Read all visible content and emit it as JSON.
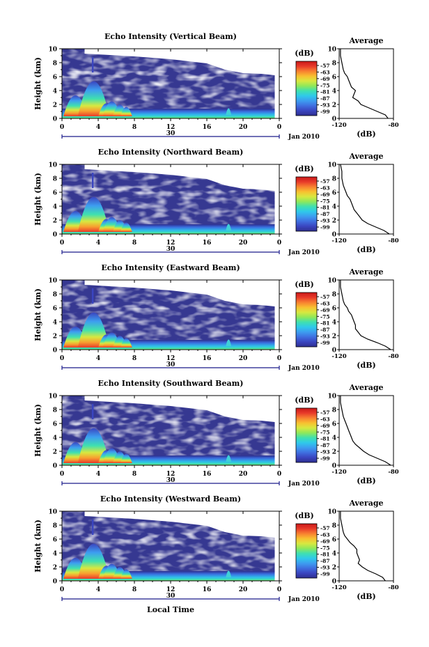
{
  "chart_data": {
    "type": "heatmap",
    "xaxis": {
      "label": "Local Time",
      "range": [
        0,
        24
      ],
      "ticks": [
        "0",
        "4",
        "8",
        "12",
        "16",
        "20",
        "0"
      ],
      "date_label": "30",
      "month_label": "Jan 2010"
    },
    "yaxis": {
      "label": "Height (km)",
      "range": [
        0,
        10
      ],
      "ticks": [
        "0",
        "2",
        "4",
        "6",
        "8",
        "10"
      ]
    },
    "colorbar": {
      "unit": "(dB)",
      "ticks": [
        "-57",
        "-63",
        "-69",
        "-75",
        "-81",
        "-87",
        "-93",
        "-99"
      ],
      "colors": [
        "#2e2e8f",
        "#3a45c0",
        "#3f6fe0",
        "#3d9df0",
        "#2fc9ea",
        "#3fe0b0",
        "#8fe85a",
        "#d8e840",
        "#f8c030",
        "#f88030",
        "#e83a2a",
        "#c81818"
      ]
    },
    "profile_axis": {
      "title": "Average",
      "xlabel": "(dB)",
      "ticks": [
        "-120",
        "-80"
      ],
      "range": [
        -120,
        -80
      ]
    },
    "beams": [
      {
        "title": "Echo Intensity (Vertical Beam)",
        "profile": [
          [
            -84,
            0
          ],
          [
            -86,
            0.5
          ],
          [
            -92,
            1
          ],
          [
            -98,
            1.5
          ],
          [
            -104,
            2
          ],
          [
            -106,
            2.5
          ],
          [
            -110,
            3
          ],
          [
            -109,
            3.5
          ],
          [
            -108,
            4
          ],
          [
            -111,
            4.5
          ],
          [
            -112,
            5
          ],
          [
            -113,
            5.5
          ],
          [
            -114,
            6
          ],
          [
            -116,
            6.5
          ],
          [
            -117,
            7
          ],
          [
            -118,
            8
          ],
          [
            -119,
            9
          ],
          [
            -119,
            10
          ]
        ]
      },
      {
        "title": "Echo Intensity (Northward Beam)",
        "profile": [
          [
            -83,
            0
          ],
          [
            -87,
            0.5
          ],
          [
            -93,
            1
          ],
          [
            -99,
            1.5
          ],
          [
            -103,
            2
          ],
          [
            -105,
            2.5
          ],
          [
            -107,
            3
          ],
          [
            -109,
            3.5
          ],
          [
            -110,
            4
          ],
          [
            -111,
            4.5
          ],
          [
            -112,
            5
          ],
          [
            -114,
            5.5
          ],
          [
            -115,
            6
          ],
          [
            -116,
            6.5
          ],
          [
            -117,
            7
          ],
          [
            -118,
            8
          ],
          [
            -118,
            9
          ],
          [
            -119,
            10
          ]
        ]
      },
      {
        "title": "Echo Intensity (Eastward Beam)",
        "profile": [
          [
            -82,
            0
          ],
          [
            -86,
            0.5
          ],
          [
            -92,
            1
          ],
          [
            -99,
            1.5
          ],
          [
            -104,
            2
          ],
          [
            -106,
            2.5
          ],
          [
            -108,
            3
          ],
          [
            -108,
            3.5
          ],
          [
            -109,
            4
          ],
          [
            -110,
            4.5
          ],
          [
            -111,
            5
          ],
          [
            -113,
            5.5
          ],
          [
            -114,
            6
          ],
          [
            -116,
            6.5
          ],
          [
            -117,
            7
          ],
          [
            -118,
            8
          ],
          [
            -119,
            9
          ],
          [
            -119,
            10
          ]
        ]
      },
      {
        "title": "Echo Intensity (Southward Beam)",
        "profile": [
          [
            -82,
            0
          ],
          [
            -86,
            0.5
          ],
          [
            -92,
            1
          ],
          [
            -98,
            1.5
          ],
          [
            -102,
            2
          ],
          [
            -105,
            2.5
          ],
          [
            -108,
            3
          ],
          [
            -110,
            3.5
          ],
          [
            -111,
            4
          ],
          [
            -112,
            4.5
          ],
          [
            -113,
            5
          ],
          [
            -114,
            5.5
          ],
          [
            -115,
            6
          ],
          [
            -116,
            6.5
          ],
          [
            -117,
            7
          ],
          [
            -118,
            8
          ],
          [
            -119,
            9
          ],
          [
            -119,
            10
          ]
        ]
      },
      {
        "title": "Echo Intensity (Westward Beam)",
        "profile": [
          [
            -86,
            0
          ],
          [
            -88,
            0.5
          ],
          [
            -93,
            1
          ],
          [
            -99,
            1.5
          ],
          [
            -103,
            2
          ],
          [
            -106,
            2.5
          ],
          [
            -105,
            3
          ],
          [
            -106,
            3.5
          ],
          [
            -107,
            4
          ],
          [
            -107,
            4.5
          ],
          [
            -109,
            5
          ],
          [
            -112,
            5.5
          ],
          [
            -114,
            6
          ],
          [
            -116,
            6.5
          ],
          [
            -117,
            7
          ],
          [
            -118,
            8
          ],
          [
            -119,
            9
          ],
          [
            -119,
            10
          ]
        ]
      }
    ]
  }
}
